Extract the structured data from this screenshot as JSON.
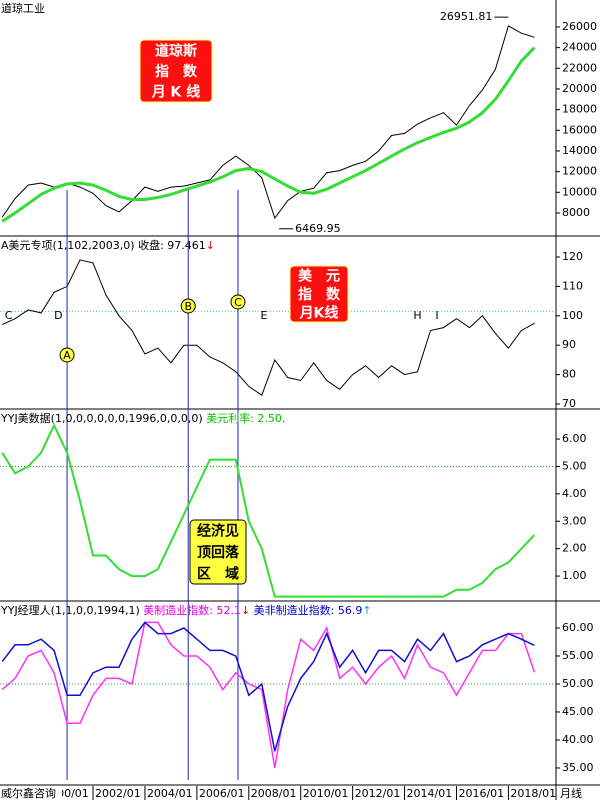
{
  "chart_data": [
    {
      "type": "line",
      "title": "道琼工业",
      "xlim": [
        "1998/06",
        "2019/11"
      ],
      "x": [
        "1998/07",
        "1999/01",
        "1999/07",
        "2000/01",
        "2000/07",
        "2001/01",
        "2001/07",
        "2002/01",
        "2002/07",
        "2003/01",
        "2003/07",
        "2004/01",
        "2004/07",
        "2005/01",
        "2005/07",
        "2006/01",
        "2006/07",
        "2007/01",
        "2007/07",
        "2008/01",
        "2008/07",
        "2009/01",
        "2009/07",
        "2010/01",
        "2010/07",
        "2011/01",
        "2011/07",
        "2012/01",
        "2012/07",
        "2013/01",
        "2013/07",
        "2014/01",
        "2014/07",
        "2015/01",
        "2015/07",
        "2016/01",
        "2016/07",
        "2017/01",
        "2017/07",
        "2018/01",
        "2018/07",
        "2019/01"
      ],
      "series": [
        {
          "name": "道琼工业",
          "color": "#000000",
          "width": 1,
          "values": [
            7600,
            9400,
            10700,
            10900,
            10500,
            10900,
            10500,
            9900,
            8700,
            8100,
            9200,
            10500,
            10100,
            10500,
            10600,
            10900,
            11200,
            12600,
            13500,
            12600,
            11400,
            7500,
            9200,
            10100,
            10400,
            11900,
            12100,
            12600,
            13000,
            14000,
            15500,
            15700,
            16600,
            17200,
            17700,
            16500,
            18400,
            19900,
            21900,
            26100,
            25400,
            25000
          ]
        },
        {
          "name": "MA",
          "color": "#33dd33",
          "width": 3,
          "values": [
            7200,
            8000,
            8900,
            9800,
            10400,
            10800,
            10900,
            10700,
            10200,
            9600,
            9300,
            9300,
            9500,
            9800,
            10200,
            10600,
            11000,
            11500,
            12100,
            12300,
            12000,
            11300,
            10600,
            10000,
            9900,
            10300,
            10900,
            11500,
            12100,
            12800,
            13500,
            14200,
            14800,
            15300,
            15800,
            16200,
            16800,
            17700,
            19000,
            20800,
            22700,
            24000
          ]
        }
      ],
      "extremes": [
        {
          "x": "2018/01",
          "value": 26951.81,
          "side": "left"
        },
        {
          "x": "2009/03",
          "value": 6469.95,
          "side": "right"
        }
      ],
      "ylim": [
        5770,
        28610
      ],
      "yticks": [
        8000,
        10000,
        12000,
        14000,
        16000,
        18000,
        20000,
        22000,
        24000,
        26000
      ],
      "box": {
        "lines": [
          "道琼斯",
          "指　数",
          "月 K 线"
        ],
        "fill": "#ff1010",
        "text_color": "#ffffff"
      }
    },
    {
      "type": "line",
      "title": "A美元专项(1,102,2003,0)",
      "readout": [
        {
          "text": " 收盘: 97.461",
          "color": "#000000"
        },
        {
          "text": "↓",
          "color": "#e00000"
        }
      ],
      "xlim": [
        "1998/06",
        "2019/11"
      ],
      "x": [
        "1998/07",
        "1999/01",
        "1999/07",
        "2000/01",
        "2000/07",
        "2001/01",
        "2001/07",
        "2002/01",
        "2002/07",
        "2003/01",
        "2003/07",
        "2004/01",
        "2004/07",
        "2005/01",
        "2005/07",
        "2006/01",
        "2006/07",
        "2007/01",
        "2007/07",
        "2008/01",
        "2008/07",
        "2009/01",
        "2009/07",
        "2010/01",
        "2010/07",
        "2011/01",
        "2011/07",
        "2012/01",
        "2012/07",
        "2013/01",
        "2013/07",
        "2014/01",
        "2014/07",
        "2015/01",
        "2015/07",
        "2016/01",
        "2016/07",
        "2017/01",
        "2017/07",
        "2018/01",
        "2018/07",
        "2019/01"
      ],
      "series": [
        {
          "name": "美元指数",
          "color": "#000000",
          "width": 1,
          "values": [
            97,
            99,
            102,
            101,
            108,
            110,
            119,
            118,
            107,
            100,
            95,
            87,
            89,
            84,
            90,
            90,
            86,
            84,
            81,
            76,
            73,
            85,
            79,
            78,
            84,
            78,
            75,
            80,
            83,
            79,
            83,
            80,
            81,
            95,
            96,
            99,
            96,
            100,
            94,
            89,
            95,
            97.461
          ]
        }
      ],
      "refline": {
        "value": 101.5,
        "color": "#40c0c0"
      },
      "ylim": [
        68.3,
        126.8
      ],
      "yticks": [
        70,
        80,
        90,
        100,
        110,
        120
      ],
      "letters": [
        {
          "label": "C",
          "x": "1998/10"
        },
        {
          "label": "D",
          "x": "2000/09"
        },
        {
          "label": "E",
          "x": "2008/08"
        },
        {
          "label": "H",
          "x": "2014/07"
        },
        {
          "label": "I",
          "x": "2015/04"
        }
      ],
      "markers": [
        {
          "label": "A",
          "x": "2001/01"
        },
        {
          "label": "B",
          "x": "2005/09"
        },
        {
          "label": "C",
          "x": "2007/08"
        }
      ],
      "box": {
        "lines": [
          "美　元",
          "指　数",
          "月K线"
        ],
        "fill": "#ff1010",
        "text_color": "#ffffff"
      }
    },
    {
      "type": "line",
      "title": "YYJ美数据(1,0,0,0,0,0,0,1996,0,0,0,0)",
      "readout": [
        {
          "text": " 美元利率: 2.50,",
          "color": "#00c000"
        }
      ],
      "xlim": [
        "1998/06",
        "2019/11"
      ],
      "x": [
        "1998/07",
        "1999/01",
        "1999/07",
        "2000/01",
        "2000/07",
        "2001/01",
        "2001/07",
        "2002/01",
        "2002/07",
        "2003/01",
        "2003/07",
        "2004/01",
        "2004/07",
        "2005/01",
        "2005/07",
        "2006/01",
        "2006/07",
        "2007/01",
        "2007/07",
        "2008/01",
        "2008/07",
        "2009/01",
        "2009/07",
        "2010/01",
        "2010/07",
        "2011/01",
        "2011/07",
        "2012/01",
        "2012/07",
        "2013/01",
        "2013/07",
        "2014/01",
        "2014/07",
        "2015/01",
        "2015/07",
        "2016/01",
        "2016/07",
        "2017/01",
        "2017/07",
        "2018/01",
        "2018/07",
        "2019/01"
      ],
      "series": [
        {
          "name": "美元利率",
          "color": "#33dd33",
          "width": 2,
          "values": [
            5.5,
            4.75,
            5,
            5.5,
            6.5,
            5.5,
            3.75,
            1.75,
            1.75,
            1.25,
            1,
            1,
            1.25,
            2.25,
            3.25,
            4.25,
            5.25,
            5.25,
            5.25,
            3,
            2,
            0.25,
            0.25,
            0.25,
            0.25,
            0.25,
            0.25,
            0.25,
            0.25,
            0.25,
            0.25,
            0.25,
            0.25,
            0.25,
            0.25,
            0.5,
            0.5,
            0.75,
            1.25,
            1.5,
            2,
            2.5
          ]
        }
      ],
      "refline": {
        "value": 5,
        "color": "#20a020"
      },
      "ylim": [
        0.09,
        7.06
      ],
      "yticks": [
        {
          "value": 1,
          "label": "1.00"
        },
        {
          "value": 2,
          "label": "2.00"
        },
        {
          "value": 3,
          "label": "3.00"
        },
        {
          "value": 4,
          "label": "4.00"
        },
        {
          "value": 5,
          "label": "5.00"
        },
        {
          "value": 6,
          "label": "6.00"
        }
      ],
      "box": {
        "lines": [
          "经济见",
          "顶回落",
          "区　域"
        ],
        "fill": "#ffff40",
        "text_color": "#000000"
      }
    },
    {
      "type": "line",
      "title": "YYJ经理人(1,1,0,0,1994,1)",
      "readout": [
        {
          "text": " 美制造业指数: 52.1",
          "color": "#e000e0"
        },
        {
          "text": "↓",
          "color": "#e00000"
        },
        {
          "text": " 美非制造业指数: 56.9",
          "color": "#0000c0"
        },
        {
          "text": "↑",
          "color": "#00a0ff"
        }
      ],
      "xlim": [
        "1998/06",
        "2019/11"
      ],
      "x": [
        "1998/07",
        "1999/01",
        "1999/07",
        "2000/01",
        "2000/07",
        "2001/01",
        "2001/07",
        "2002/01",
        "2002/07",
        "2003/01",
        "2003/07",
        "2004/01",
        "2004/07",
        "2005/01",
        "2005/07",
        "2006/01",
        "2006/07",
        "2007/01",
        "2007/07",
        "2008/01",
        "2008/07",
        "2009/01",
        "2009/07",
        "2010/01",
        "2010/07",
        "2011/01",
        "2011/07",
        "2012/01",
        "2012/07",
        "2013/01",
        "2013/07",
        "2014/01",
        "2014/07",
        "2015/01",
        "2015/07",
        "2016/01",
        "2016/07",
        "2017/01",
        "2017/07",
        "2018/01",
        "2018/07",
        "2019/01"
      ],
      "series": [
        {
          "name": "美制造业指数",
          "color": "#ff30ff",
          "width": 1.5,
          "values": [
            49,
            51,
            55,
            56,
            52,
            43,
            43,
            48,
            51,
            51,
            50,
            61,
            61,
            57,
            55,
            55,
            53,
            49,
            52,
            50,
            49,
            35,
            49,
            58,
            56,
            60,
            51,
            53,
            50,
            53,
            55,
            51,
            57,
            53,
            52,
            48,
            52,
            56,
            56,
            59,
            59,
            52.1
          ]
        },
        {
          "name": "美非制造业指数",
          "color": "#1010d0",
          "width": 1.5,
          "values": [
            54,
            57,
            57,
            58,
            56,
            48,
            48,
            52,
            53,
            53,
            58,
            61,
            59,
            59,
            60,
            58,
            56,
            56,
            55,
            48,
            50,
            38,
            46,
            51,
            54,
            59,
            53,
            56,
            52,
            56,
            56,
            54,
            58,
            56,
            59,
            54,
            55,
            57,
            58,
            59,
            58,
            56.9
          ]
        }
      ],
      "refline": {
        "value": 50,
        "color": "#20a020"
      },
      "ylim": [
        31.96,
        64.64
      ],
      "yticks": [
        {
          "value": 35,
          "label": "35.00"
        },
        {
          "value": 40,
          "label": "40.00"
        },
        {
          "value": 45,
          "label": "45.00"
        },
        {
          "value": 50,
          "label": "50.00"
        },
        {
          "value": 55,
          "label": "55.00"
        },
        {
          "value": 60,
          "label": "60.00"
        }
      ],
      "xticks": [
        "2000/01",
        "2002/01",
        "2004/01",
        "2006/01",
        "2008/01",
        "2010/01",
        "2012/01",
        "2014/01",
        "2016/01",
        "2018/01"
      ]
    }
  ],
  "footer": {
    "source": "威尔鑫咨询",
    "period": "月线"
  }
}
